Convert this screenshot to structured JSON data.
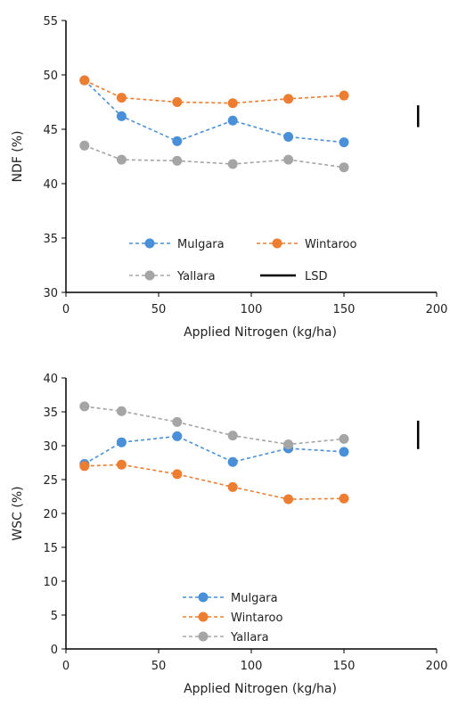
{
  "chart_data": [
    {
      "type": "line",
      "xlabel": "Applied Nitrogen (kg/ha)",
      "ylabel": "NDF (%)",
      "xlim": [
        0,
        200
      ],
      "ylim": [
        30,
        55
      ],
      "xticks": [
        "0",
        "50",
        "100",
        "150",
        "200"
      ],
      "yticks": [
        "30",
        "35",
        "40",
        "45",
        "50",
        "55"
      ],
      "x": [
        10,
        30,
        60,
        90,
        120,
        150
      ],
      "series": [
        {
          "name": "Mulgara",
          "color": "#4a90d9",
          "values": [
            49.5,
            46.2,
            43.9,
            45.8,
            44.3,
            43.8
          ]
        },
        {
          "name": "Wintaroo",
          "color": "#ed7d31",
          "values": [
            49.5,
            47.9,
            47.5,
            47.4,
            47.8,
            48.1
          ]
        },
        {
          "name": "Yallara",
          "color": "#a5a5a5",
          "values": [
            43.5,
            42.2,
            42.1,
            41.8,
            42.2,
            41.5
          ]
        }
      ],
      "lsd": {
        "label": "LSD",
        "x": 190,
        "y_low": 45.2,
        "y_high": 47.2
      },
      "legend": {
        "position": "bottom-center"
      }
    },
    {
      "type": "line",
      "xlabel": "Applied Nitrogen (kg/ha)",
      "ylabel": "WSC (%)",
      "xlim": [
        0,
        200
      ],
      "ylim": [
        0,
        40
      ],
      "xticks": [
        "0",
        "50",
        "100",
        "150",
        "200"
      ],
      "yticks": [
        "0",
        "5",
        "10",
        "15",
        "20",
        "25",
        "30",
        "35",
        "40"
      ],
      "x": [
        10,
        30,
        60,
        90,
        120,
        150
      ],
      "series": [
        {
          "name": "Mulgara",
          "color": "#4a90d9",
          "values": [
            27.3,
            30.5,
            31.4,
            27.6,
            29.6,
            29.1
          ]
        },
        {
          "name": "Wintaroo",
          "color": "#ed7d31",
          "values": [
            27.0,
            27.2,
            25.8,
            23.9,
            22.1,
            22.2
          ]
        },
        {
          "name": "Yallara",
          "color": "#a5a5a5",
          "values": [
            35.8,
            35.1,
            33.5,
            31.5,
            30.2,
            31.0
          ]
        }
      ],
      "lsd": {
        "x": 190,
        "y_low": 29.5,
        "y_high": 33.7
      },
      "legend": {
        "position": "bottom-center"
      }
    }
  ]
}
